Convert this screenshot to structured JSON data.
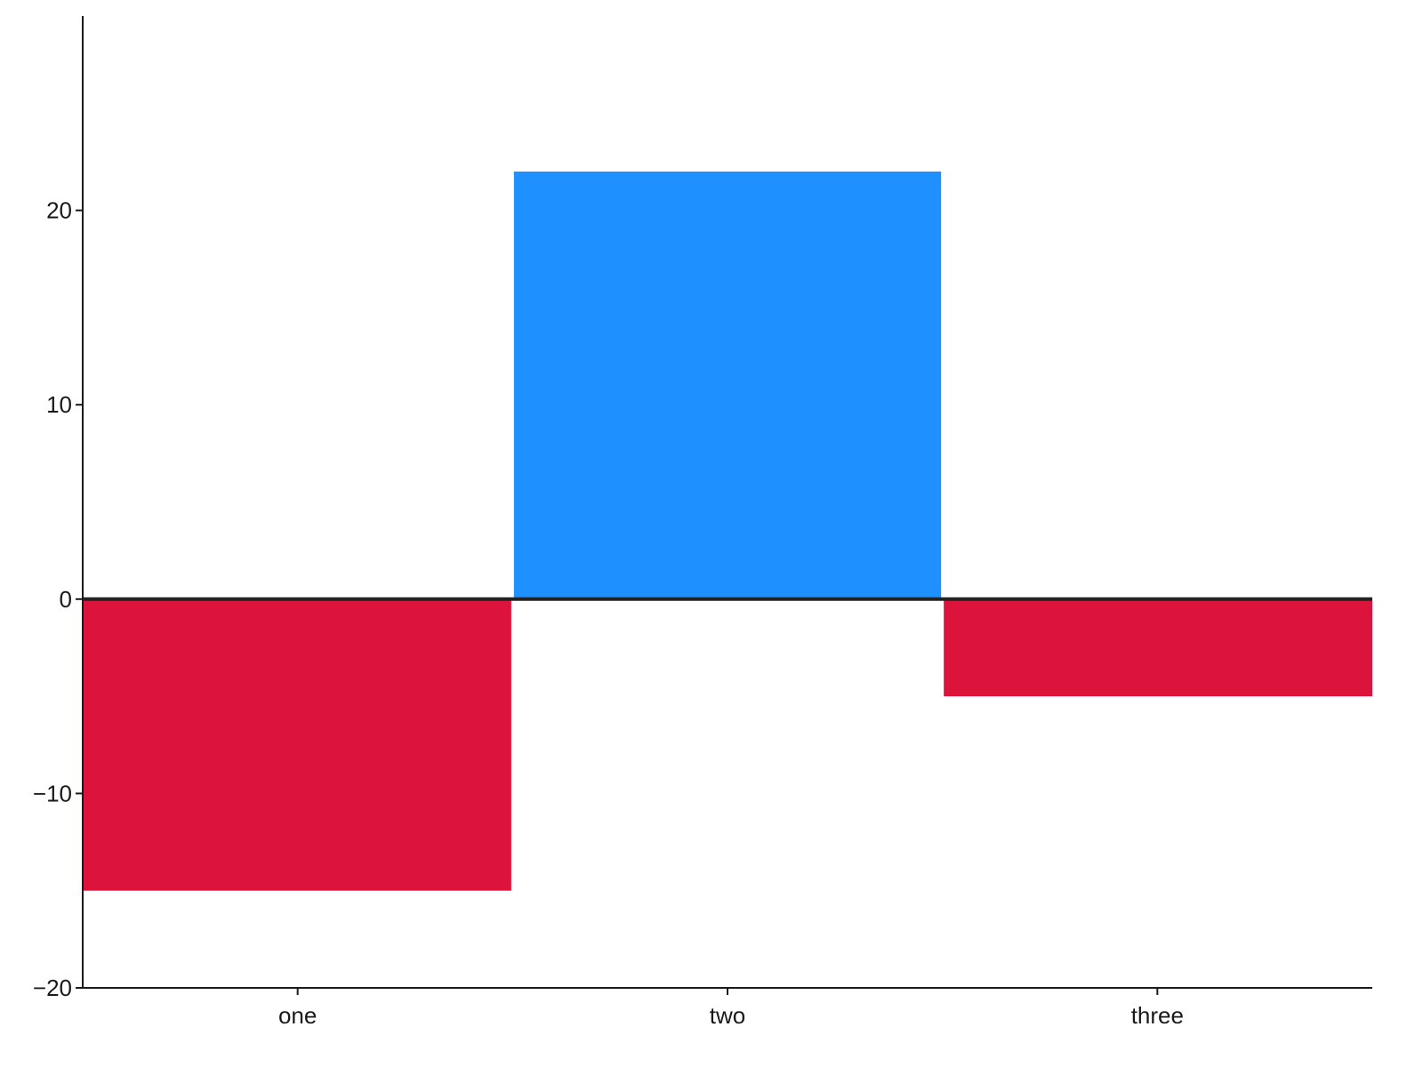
{
  "chart_data": {
    "type": "bar",
    "categories": [
      "one",
      "two",
      "three"
    ],
    "values": [
      -15,
      22,
      -5
    ],
    "ylim": [
      -20,
      30
    ],
    "yticks": [
      -20,
      -10,
      0,
      10,
      20
    ],
    "ytick_labels": [
      "−20",
      "−10",
      "0",
      "10",
      "20"
    ],
    "title": "",
    "xlabel": "",
    "ylabel": "",
    "grid": false,
    "legend": "none",
    "colors": {
      "positive": "#1E90FF",
      "negative": "#DC143C",
      "zero_line": "#222222",
      "axis": "#1a1a1a"
    }
  }
}
